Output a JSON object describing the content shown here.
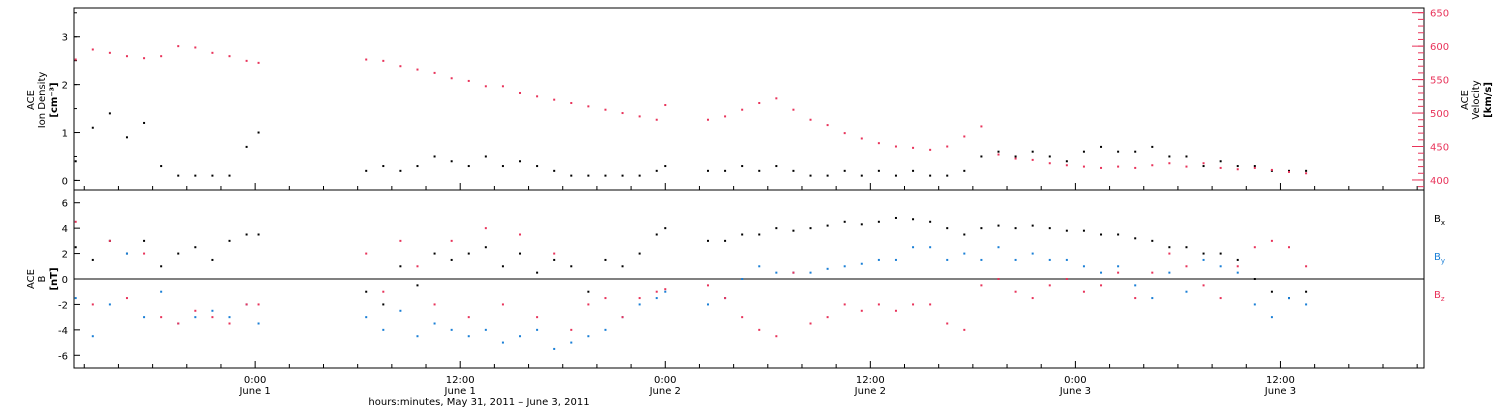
{
  "xaxis": {
    "title": "hours:minutes, May 31, 2011 – June  3, 2011",
    "tick_labels": [
      {
        "time": "0:00",
        "date": "June 1",
        "hour": 24
      },
      {
        "time": "12:00",
        "date": "June 1",
        "hour": 36
      },
      {
        "time": "0:00",
        "date": "June 2",
        "hour": 48
      },
      {
        "time": "12:00",
        "date": "June 2",
        "hour": 60
      },
      {
        "time": "0:00",
        "date": "June 3",
        "hour": 72
      },
      {
        "time": "12:00",
        "date": "June 3",
        "hour": 84
      }
    ],
    "range_hours": [
      13.4,
      92.4
    ]
  },
  "panel_top": {
    "left_axis": {
      "line1": "ACE",
      "line2": "Ion Density",
      "unit": "[cm⁻³]",
      "ticks": [
        "0",
        "1",
        "2",
        "3"
      ],
      "range": [
        -0.2,
        3.6
      ]
    },
    "right_axis": {
      "line1": "ACE",
      "line2": "Velocity",
      "unit": "[km/s]",
      "ticks": [
        "400",
        "450",
        "500",
        "550",
        "600",
        "650"
      ],
      "range": [
        385,
        657
      ]
    },
    "colors": {
      "density": "#000000",
      "velocity": "#e8335a"
    }
  },
  "panel_bottom": {
    "left_axis": {
      "line1": "ACE",
      "line2": "B",
      "unit": "[nT]",
      "ticks": [
        "6",
        "4",
        "2",
        "0",
        "-2",
        "-4",
        "-6"
      ],
      "range": [
        -7,
        7
      ]
    },
    "legend": [
      {
        "label": "B",
        "sub": "x",
        "color": "#000000"
      },
      {
        "label": "B",
        "sub": "y",
        "color": "#1a7fd6"
      },
      {
        "label": "B",
        "sub": "z",
        "color": "#e8335a"
      }
    ]
  },
  "chart_data": [
    {
      "type": "scatter",
      "x_unit": "hours since May 31, 2011 00:00",
      "series": [
        {
          "name": "Ion Density",
          "axis": "left",
          "color": "#000000",
          "x": [
            13.5,
            14.5,
            15.5,
            16.5,
            17.5,
            18.5,
            19.5,
            20.5,
            21.5,
            22.5,
            23.5,
            24.2,
            30.5,
            31.5,
            32.5,
            33.5,
            34.5,
            35.5,
            36.5,
            37.5,
            38.5,
            39.5,
            40.5,
            41.5,
            42.5,
            43.5,
            44.5,
            45.5,
            46.5,
            47.5,
            48.0,
            50.5,
            51.5,
            52.5,
            53.5,
            54.5,
            55.5,
            56.5,
            57.5,
            58.5,
            59.5,
            60.5,
            61.5,
            62.5,
            63.5,
            64.5,
            65.5,
            66.5,
            67.5,
            68.5,
            69.5,
            70.5,
            71.5,
            72.5,
            73.5,
            74.5,
            75.5,
            76.5,
            77.5,
            78.5,
            79.5,
            80.5,
            81.5,
            82.5,
            83.5,
            84.5,
            85.5
          ],
          "y": [
            0.4,
            1.1,
            1.4,
            0.9,
            1.2,
            0.3,
            0.1,
            0.1,
            0.1,
            0.1,
            0.7,
            1.0,
            0.2,
            0.3,
            0.2,
            0.3,
            0.5,
            0.4,
            0.3,
            0.5,
            0.3,
            0.4,
            0.3,
            0.2,
            0.1,
            0.1,
            0.1,
            0.1,
            0.1,
            0.2,
            0.3,
            0.2,
            0.2,
            0.3,
            0.2,
            0.3,
            0.2,
            0.1,
            0.1,
            0.2,
            0.1,
            0.2,
            0.1,
            0.2,
            0.1,
            0.1,
            0.2,
            0.5,
            0.6,
            0.5,
            0.6,
            0.5,
            0.4,
            0.6,
            0.7,
            0.6,
            0.6,
            0.7,
            0.5,
            0.5,
            0.3,
            0.4,
            0.3,
            0.3,
            0.2,
            0.2,
            0.2
          ]
        },
        {
          "name": "Velocity",
          "axis": "right",
          "color": "#e8335a",
          "x": [
            13.5,
            14.5,
            15.5,
            16.5,
            17.5,
            18.5,
            19.5,
            20.5,
            21.5,
            22.5,
            23.5,
            24.2,
            30.5,
            31.5,
            32.5,
            33.5,
            34.5,
            35.5,
            36.5,
            37.5,
            38.5,
            39.5,
            40.5,
            41.5,
            42.5,
            43.5,
            44.5,
            45.5,
            46.5,
            47.5,
            48.0,
            50.5,
            51.5,
            52.5,
            53.5,
            54.5,
            55.5,
            56.5,
            57.5,
            58.5,
            59.5,
            60.5,
            61.5,
            62.5,
            63.5,
            64.5,
            65.5,
            66.5,
            67.5,
            68.5,
            69.5,
            70.5,
            71.5,
            72.5,
            73.5,
            74.5,
            75.5,
            76.5,
            77.5,
            78.5,
            79.5,
            80.5,
            81.5,
            82.5,
            83.5,
            84.5,
            85.5
          ],
          "y": [
            580,
            595,
            590,
            585,
            582,
            585,
            600,
            598,
            590,
            585,
            578,
            575,
            580,
            578,
            570,
            565,
            560,
            552,
            548,
            540,
            540,
            530,
            525,
            520,
            515,
            510,
            505,
            500,
            495,
            490,
            512,
            490,
            495,
            505,
            515,
            522,
            505,
            490,
            482,
            470,
            462,
            455,
            450,
            448,
            445,
            450,
            465,
            480,
            438,
            432,
            430,
            425,
            422,
            420,
            418,
            420,
            418,
            422,
            425,
            420,
            425,
            418,
            416,
            418,
            415,
            412,
            410
          ]
        }
      ]
    },
    {
      "type": "scatter",
      "x_unit": "hours since May 31, 2011 00:00",
      "series": [
        {
          "name": "Bx",
          "color": "#000000",
          "x": [
            13.5,
            14.5,
            15.5,
            16.5,
            17.5,
            18.5,
            19.5,
            20.5,
            21.5,
            22.5,
            23.5,
            24.2,
            30.5,
            31.5,
            32.5,
            33.5,
            34.5,
            35.5,
            36.5,
            37.5,
            38.5,
            39.5,
            40.5,
            41.5,
            42.5,
            43.5,
            44.5,
            45.5,
            46.5,
            47.5,
            48.0,
            50.5,
            51.5,
            52.5,
            53.5,
            54.5,
            55.5,
            56.5,
            57.5,
            58.5,
            59.5,
            60.5,
            61.5,
            62.5,
            63.5,
            64.5,
            65.5,
            66.5,
            67.5,
            68.5,
            69.5,
            70.5,
            71.5,
            72.5,
            73.5,
            74.5,
            75.5,
            76.5,
            77.5,
            78.5,
            79.5,
            80.5,
            81.5,
            82.5,
            83.5,
            84.5,
            85.5
          ],
          "y": [
            2.5,
            1.5,
            3.0,
            2.0,
            3.0,
            1.0,
            2.0,
            2.5,
            1.5,
            3.0,
            3.5,
            3.5,
            -1.0,
            -2.0,
            1.0,
            -0.5,
            2.0,
            1.5,
            2.0,
            2.5,
            1.0,
            2.0,
            0.5,
            1.5,
            1.0,
            -1.0,
            1.5,
            1.0,
            2.0,
            3.5,
            4.0,
            3.0,
            3.0,
            3.5,
            3.5,
            4.0,
            3.8,
            4.0,
            4.2,
            4.5,
            4.3,
            4.5,
            4.8,
            4.7,
            4.5,
            4.0,
            3.5,
            4.0,
            4.2,
            4.0,
            4.2,
            4.0,
            3.8,
            3.8,
            3.5,
            3.5,
            3.2,
            3.0,
            2.5,
            2.5,
            2.0,
            2.0,
            1.5,
            0.0,
            -1.0,
            -1.5,
            -1.0
          ]
        },
        {
          "name": "By",
          "color": "#1a7fd6",
          "x": [
            13.5,
            14.5,
            15.5,
            16.5,
            17.5,
            18.5,
            19.5,
            20.5,
            21.5,
            22.5,
            23.5,
            24.2,
            30.5,
            31.5,
            32.5,
            33.5,
            34.5,
            35.5,
            36.5,
            37.5,
            38.5,
            39.5,
            40.5,
            41.5,
            42.5,
            43.5,
            44.5,
            45.5,
            46.5,
            47.5,
            48.0,
            50.5,
            51.5,
            52.5,
            53.5,
            54.5,
            55.5,
            56.5,
            57.5,
            58.5,
            59.5,
            60.5,
            61.5,
            62.5,
            63.5,
            64.5,
            65.5,
            66.5,
            67.5,
            68.5,
            69.5,
            70.5,
            71.5,
            72.5,
            73.5,
            74.5,
            75.5,
            76.5,
            77.5,
            78.5,
            79.5,
            80.5,
            81.5,
            82.5,
            83.5,
            84.5,
            85.5
          ],
          "y": [
            -1.5,
            -4.5,
            -2.0,
            2.0,
            -3.0,
            -1.0,
            -3.5,
            -3.0,
            -2.5,
            -3.0,
            -2.0,
            -3.5,
            -3.0,
            -4.0,
            -2.5,
            -4.5,
            -3.5,
            -4.0,
            -4.5,
            -4.0,
            -5.0,
            -4.5,
            -4.0,
            -5.5,
            -5.0,
            -4.5,
            -4.0,
            -3.0,
            -2.0,
            -1.5,
            -1.0,
            -2.0,
            -1.5,
            0.0,
            1.0,
            0.5,
            0.5,
            0.5,
            0.8,
            1.0,
            1.2,
            1.5,
            1.5,
            2.5,
            2.5,
            1.5,
            2.0,
            1.5,
            2.5,
            1.5,
            2.0,
            1.5,
            1.5,
            1.0,
            0.5,
            1.0,
            -0.5,
            -1.5,
            0.5,
            -1.0,
            1.5,
            1.0,
            0.5,
            -2.0,
            -3.0,
            -1.5,
            -2.0
          ]
        },
        {
          "name": "Bz",
          "color": "#e8335a",
          "x": [
            13.5,
            14.5,
            15.5,
            16.5,
            17.5,
            18.5,
            19.5,
            20.5,
            21.5,
            22.5,
            23.5,
            24.2,
            30.5,
            31.5,
            32.5,
            33.5,
            34.5,
            35.5,
            36.5,
            37.5,
            38.5,
            39.5,
            40.5,
            41.5,
            42.5,
            43.5,
            44.5,
            45.5,
            46.5,
            47.5,
            48.0,
            50.5,
            51.5,
            52.5,
            53.5,
            54.5,
            55.5,
            56.5,
            57.5,
            58.5,
            59.5,
            60.5,
            61.5,
            62.5,
            63.5,
            64.5,
            65.5,
            66.5,
            67.5,
            68.5,
            69.5,
            70.5,
            71.5,
            72.5,
            73.5,
            74.5,
            75.5,
            76.5,
            77.5,
            78.5,
            79.5,
            80.5,
            81.5,
            82.5,
            83.5,
            84.5,
            85.5
          ],
          "y": [
            4.5,
            -2.0,
            3.0,
            -1.5,
            2.0,
            -3.0,
            -3.5,
            -2.5,
            -3.0,
            -3.5,
            -2.0,
            -2.0,
            2.0,
            -1.0,
            3.0,
            1.0,
            -2.0,
            3.0,
            -3.0,
            4.0,
            -2.0,
            3.5,
            -3.0,
            2.0,
            -4.0,
            -2.0,
            -1.5,
            -3.0,
            -1.5,
            -1.0,
            -0.8,
            -0.5,
            -1.5,
            -3.0,
            -4.0,
            -4.5,
            0.5,
            -3.5,
            -3.0,
            -2.0,
            -2.5,
            -2.0,
            -2.5,
            -2.0,
            -2.0,
            -3.5,
            -4.0,
            -0.5,
            0.0,
            -1.0,
            -1.5,
            -0.5,
            0.0,
            -1.0,
            -0.5,
            0.5,
            -1.5,
            0.5,
            2.0,
            1.0,
            -0.5,
            -1.5,
            1.0,
            2.5,
            3.0,
            2.5,
            1.0
          ]
        }
      ]
    }
  ]
}
